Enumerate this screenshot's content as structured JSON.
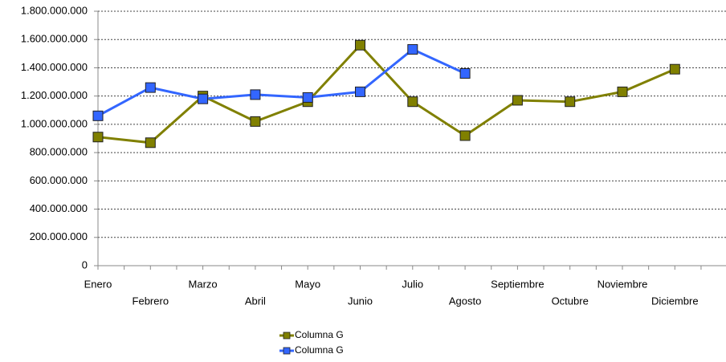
{
  "chart_data": {
    "type": "line",
    "categories": [
      "Enero",
      "Febrero",
      "Marzo",
      "Abril",
      "Mayo",
      "Junio",
      "Julio",
      "Agosto",
      "Septiembre",
      "Octubre",
      "Noviembre",
      "Diciembre"
    ],
    "series": [
      {
        "name": "Columna G",
        "color": "#808000",
        "values": [
          910000000,
          870000000,
          1200000000,
          1020000000,
          1160000000,
          1560000000,
          1160000000,
          920000000,
          1170000000,
          1160000000,
          1230000000,
          1390000000
        ]
      },
      {
        "name": "Columna G",
        "color": "#3366ff",
        "values": [
          1060000000,
          1260000000,
          1180000000,
          1210000000,
          1190000000,
          1230000000,
          1530000000,
          1360000000,
          null,
          null,
          null,
          null
        ]
      }
    ],
    "ylim": [
      0,
      1800000000
    ],
    "yticks": [
      0,
      {
        "value": 200000000,
        "label": "200.000.000"
      },
      {
        "value": 400000000,
        "label": "400.000.000"
      },
      {
        "value": 600000000,
        "label": "600.000.000"
      },
      {
        "value": 800000000,
        "label": "800.000.000"
      },
      {
        "value": 1000000000,
        "label": "1.000.000.000"
      },
      {
        "value": 1200000000,
        "label": "1.200.000.000"
      },
      {
        "value": 1400000000,
        "label": "1.400.000.000"
      },
      {
        "value": 1600000000,
        "label": "1.600.000.000"
      },
      {
        "value": 1800000000,
        "label": "1.800.000.000"
      }
    ],
    "grid": true
  }
}
